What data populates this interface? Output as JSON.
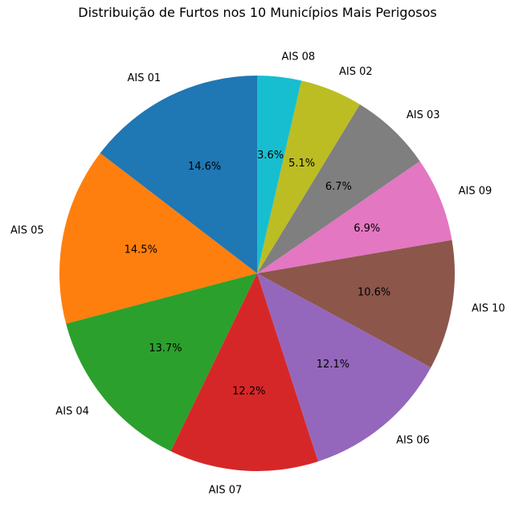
{
  "chart_data": {
    "type": "pie",
    "title": "Distribuição de Furtos nos 10 Municípios Mais Perigosos",
    "start_angle": "top, counter-clockwise",
    "slices": [
      {
        "label": "AIS 01",
        "percent": 14.6,
        "pct_label": "14.6%",
        "color": "#1f77b4"
      },
      {
        "label": "AIS 05",
        "percent": 14.5,
        "pct_label": "14.5%",
        "color": "#ff7f0e"
      },
      {
        "label": "AIS 04",
        "percent": 13.7,
        "pct_label": "13.7%",
        "color": "#2ca02c"
      },
      {
        "label": "AIS 07",
        "percent": 12.2,
        "pct_label": "12.2%",
        "color": "#d62728"
      },
      {
        "label": "AIS 06",
        "percent": 12.1,
        "pct_label": "12.1%",
        "color": "#9467bd"
      },
      {
        "label": "AIS 10",
        "percent": 10.6,
        "pct_label": "10.6%",
        "color": "#8c564b"
      },
      {
        "label": "AIS 09",
        "percent": 6.9,
        "pct_label": "6.9%",
        "color": "#e377c2"
      },
      {
        "label": "AIS 03",
        "percent": 6.7,
        "pct_label": "6.7%",
        "color": "#7f7f7f"
      },
      {
        "label": "AIS 02",
        "percent": 5.1,
        "pct_label": "5.1%",
        "color": "#bcbd22"
      },
      {
        "label": "AIS 08",
        "percent": 3.6,
        "pct_label": "3.6%",
        "color": "#17becf"
      }
    ]
  }
}
